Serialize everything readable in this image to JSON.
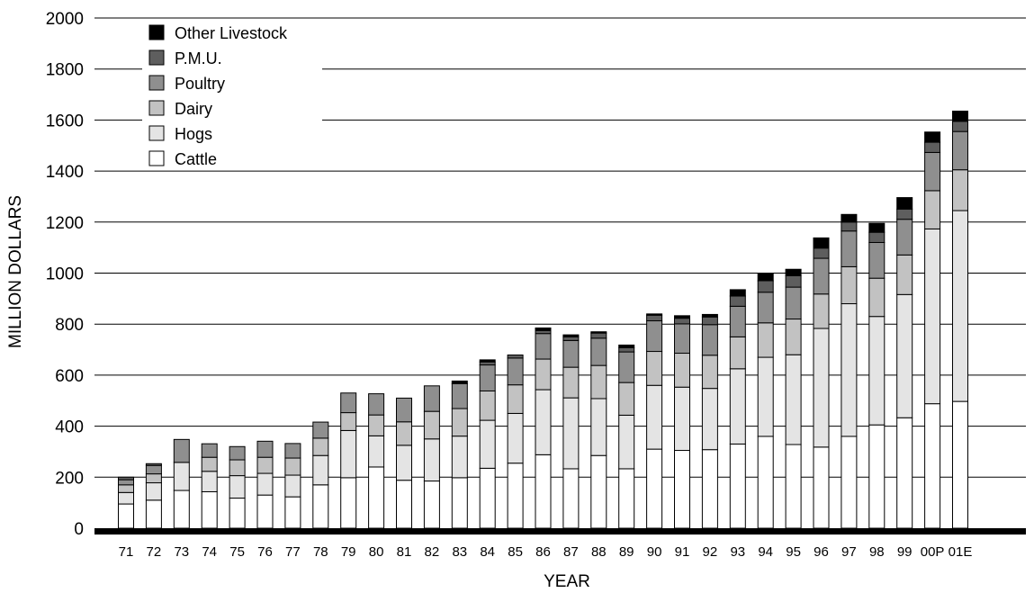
{
  "chart_data": {
    "type": "bar",
    "stacked": true,
    "xlabel": "YEAR",
    "ylabel": "MILLION DOLLARS",
    "ylim": [
      0,
      2000
    ],
    "yticks": [
      0,
      200,
      400,
      600,
      800,
      1000,
      1200,
      1400,
      1600,
      1800,
      2000
    ],
    "grid": true,
    "legend_position": "top-left",
    "categories": [
      "71",
      "72",
      "73",
      "74",
      "75",
      "76",
      "77",
      "78",
      "79",
      "80",
      "81",
      "82",
      "83",
      "84",
      "85",
      "86",
      "87",
      "88",
      "89",
      "90",
      "91",
      "92",
      "93",
      "94",
      "95",
      "96",
      "97",
      "98",
      "99",
      "00P",
      "01E"
    ],
    "series": [
      {
        "name": "Cattle",
        "color": "#ffffff",
        "values": [
          95,
          110,
          148,
          143,
          118,
          130,
          123,
          170,
          198,
          240,
          188,
          185,
          198,
          235,
          255,
          288,
          233,
          285,
          233,
          310,
          305,
          308,
          330,
          360,
          328,
          318,
          360,
          405,
          433,
          488,
          497
        ]
      },
      {
        "name": "Hogs",
        "color": "#e4e4e4",
        "values": [
          45,
          68,
          110,
          80,
          88,
          85,
          85,
          115,
          185,
          122,
          137,
          165,
          163,
          188,
          195,
          255,
          278,
          223,
          210,
          250,
          248,
          240,
          295,
          310,
          352,
          465,
          520,
          425,
          483,
          685,
          748
        ]
      },
      {
        "name": "Dairy",
        "color": "#c2c2c2",
        "values": [
          30,
          35,
          0,
          55,
          62,
          63,
          67,
          68,
          70,
          82,
          92,
          108,
          108,
          115,
          112,
          120,
          120,
          130,
          128,
          133,
          133,
          130,
          125,
          135,
          140,
          135,
          145,
          150,
          155,
          150,
          160
        ]
      },
      {
        "name": "Poultry",
        "color": "#8f8f8f",
        "values": [
          20,
          33,
          90,
          53,
          52,
          63,
          57,
          63,
          77,
          83,
          93,
          100,
          98,
          102,
          105,
          100,
          105,
          107,
          120,
          120,
          115,
          120,
          120,
          120,
          125,
          140,
          140,
          140,
          140,
          150,
          150
        ]
      },
      {
        "name": "P.M.U.",
        "color": "#5e5e5e",
        "values": [
          10,
          7,
          0,
          0,
          0,
          0,
          0,
          0,
          0,
          0,
          0,
          0,
          0,
          12,
          12,
          12,
          14,
          20,
          17,
          22,
          22,
          30,
          40,
          45,
          45,
          40,
          35,
          40,
          40,
          40,
          40
        ]
      },
      {
        "name": "Other Livestock",
        "color": "#000000",
        "values": [
          0,
          0,
          0,
          0,
          0,
          0,
          0,
          0,
          0,
          0,
          0,
          0,
          10,
          8,
          0,
          10,
          8,
          5,
          10,
          5,
          10,
          10,
          25,
          30,
          25,
          40,
          30,
          35,
          45,
          40,
          40
        ]
      }
    ],
    "legend_order": [
      "Other Livestock",
      "P.M.U.",
      "Poultry",
      "Dairy",
      "Hogs",
      "Cattle"
    ]
  }
}
